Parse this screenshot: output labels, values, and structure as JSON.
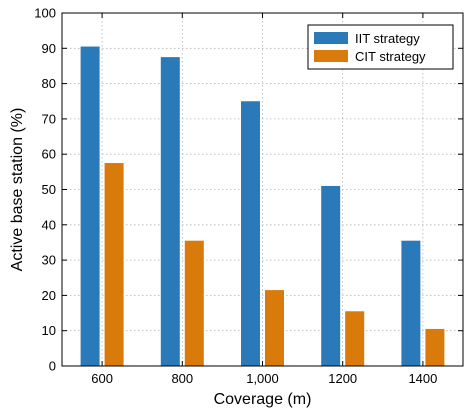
{
  "chart_data": {
    "type": "bar",
    "categories": [
      "600",
      "800",
      "1,000",
      "1200",
      "1400"
    ],
    "series": [
      {
        "name": "IIT strategy",
        "values": [
          90.5,
          87.5,
          75,
          51,
          35.5
        ],
        "color": "#2a7ab9"
      },
      {
        "name": "CIT strategy",
        "values": [
          57.5,
          35.5,
          21.5,
          15.5,
          10.5
        ],
        "color": "#d97b0a"
      }
    ],
    "title": "",
    "xlabel": "Coverage (m)",
    "ylabel": "Active base station (%)",
    "ylim": [
      0,
      100
    ],
    "yticks": [
      0,
      10,
      20,
      30,
      40,
      50,
      60,
      70,
      80,
      90,
      100
    ],
    "grid": true,
    "legend_position": "top-right"
  }
}
